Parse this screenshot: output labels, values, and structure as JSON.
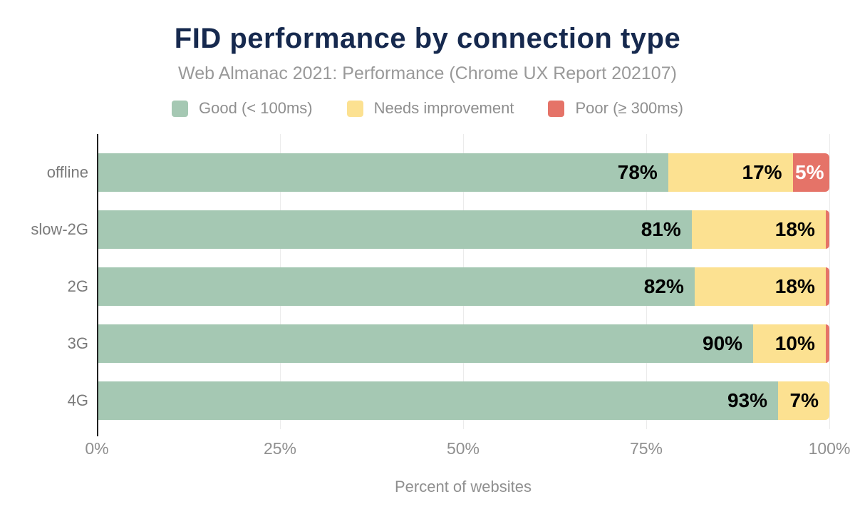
{
  "title": "FID performance by connection type",
  "subtitle": "Web Almanac 2021: Performance (Chrome UX Report 202107)",
  "x_axis_title": "Percent of websites",
  "colors": {
    "good": "#a5c8b3",
    "needs_improvement": "#fce191",
    "poor": "#e57368",
    "title_navy": "#16294e",
    "axis_line": "#212121",
    "gridline": "#ebebeb",
    "muted_text": "#8f8f8f"
  },
  "legend": {
    "items": [
      {
        "label": "Good (< 100ms)",
        "color": "#a5c8b3",
        "icon": "good-swatch-icon"
      },
      {
        "label": "Needs improvement",
        "color": "#fce191",
        "icon": "needs-improvement-swatch-icon"
      },
      {
        "label": "Poor (≥ 300ms)",
        "color": "#e57368",
        "icon": "poor-swatch-icon"
      }
    ]
  },
  "x_axis": {
    "ticks": [
      {
        "label": "0%",
        "pos": 0
      },
      {
        "label": "25%",
        "pos": 25
      },
      {
        "label": "50%",
        "pos": 50
      },
      {
        "label": "75%",
        "pos": 75
      },
      {
        "label": "100%",
        "pos": 100
      }
    ]
  },
  "chart_data": {
    "type": "bar",
    "orientation": "horizontal",
    "stacked": true,
    "title": "FID performance by connection type",
    "subtitle": "Web Almanac 2021: Performance (Chrome UX Report 202107)",
    "xlabel": "Percent of websites",
    "ylabel": "",
    "xlim": [
      0,
      100
    ],
    "grid": true,
    "legend_position": "top",
    "categories": [
      "offline",
      "slow-2G",
      "2G",
      "3G",
      "4G"
    ],
    "series": [
      {
        "name": "Good (< 100ms)",
        "color": "#a5c8b3",
        "values": [
          78,
          81,
          82,
          90,
          93
        ]
      },
      {
        "name": "Needs improvement",
        "color": "#fce191",
        "values": [
          17,
          18,
          18,
          10,
          7
        ]
      },
      {
        "name": "Poor (≥ 300ms)",
        "color": "#e57368",
        "values": [
          5,
          1,
          1,
          1,
          0
        ]
      }
    ],
    "data_labels": [
      [
        "78%",
        "17%",
        "5%"
      ],
      [
        "81%",
        "18%",
        ""
      ],
      [
        "82%",
        "18%",
        ""
      ],
      [
        "90%",
        "10%",
        ""
      ],
      [
        "93%",
        "7%",
        ""
      ]
    ]
  },
  "rows": [
    {
      "category": "offline",
      "segments": [
        {
          "width": 78,
          "label": "78%",
          "series": "good"
        },
        {
          "width": 17,
          "label": "17%",
          "series": "needs_improvement"
        },
        {
          "width": 5,
          "label": "5%",
          "series": "poor",
          "label_color": "#ffffff",
          "center": true
        }
      ]
    },
    {
      "category": "slow-2G",
      "segments": [
        {
          "width": 81.2,
          "label": "81%",
          "series": "good"
        },
        {
          "width": 18.3,
          "label": "18%",
          "series": "needs_improvement"
        },
        {
          "width": 0.5,
          "label": "",
          "series": "poor"
        }
      ]
    },
    {
      "category": "2G",
      "segments": [
        {
          "width": 81.6,
          "label": "82%",
          "series": "good"
        },
        {
          "width": 17.9,
          "label": "18%",
          "series": "needs_improvement"
        },
        {
          "width": 0.5,
          "label": "",
          "series": "poor"
        }
      ]
    },
    {
      "category": "3G",
      "segments": [
        {
          "width": 89.6,
          "label": "90%",
          "series": "good"
        },
        {
          "width": 9.9,
          "label": "10%",
          "series": "needs_improvement"
        },
        {
          "width": 0.5,
          "label": "",
          "series": "poor"
        }
      ]
    },
    {
      "category": "4G",
      "segments": [
        {
          "width": 93,
          "label": "93%",
          "series": "good"
        },
        {
          "width": 7,
          "label": "7%",
          "series": "needs_improvement"
        },
        {
          "width": 0,
          "label": "",
          "series": "poor"
        }
      ]
    }
  ]
}
